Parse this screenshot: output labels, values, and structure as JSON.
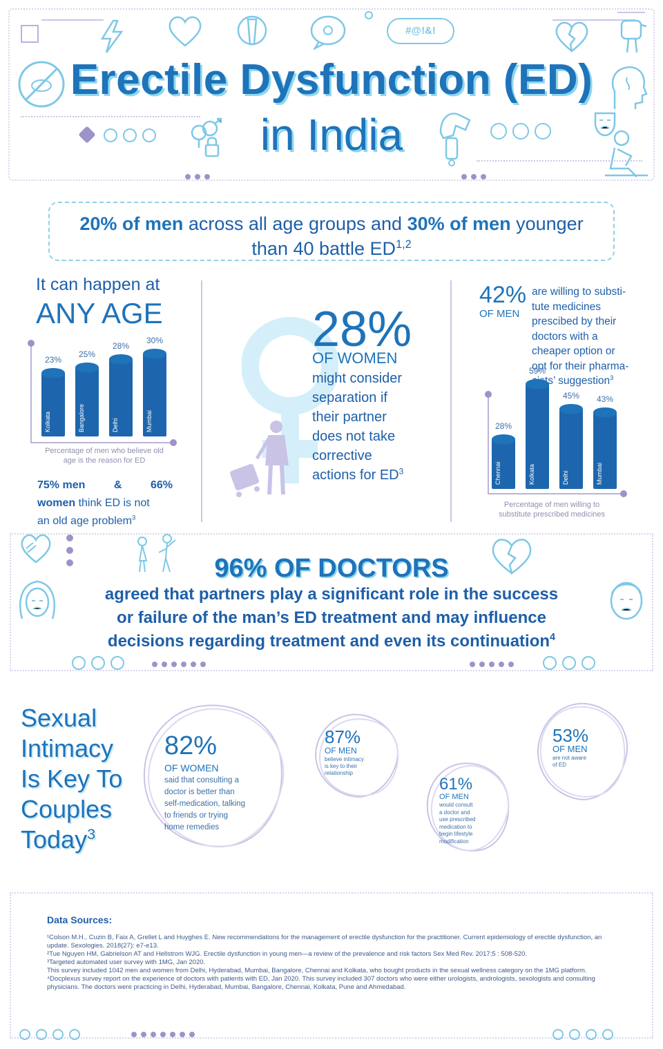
{
  "header": {
    "title": "Erectile Dysfunction (ED)",
    "subtitle": "in India",
    "speech_text": "#@!&!"
  },
  "banner": {
    "part1_bold": "20% of men",
    "part2": " across all age groups and ",
    "part3_bold": "30% of men",
    "part4": " younger",
    "line2": "than 40 battle ED",
    "line2_sup": "1,2"
  },
  "any_age": {
    "intro": "It can happen at",
    "headline": "ANY AGE",
    "caption": "Percentage of men who believe old age is the reason for ED",
    "stat_bold1": "75% men",
    "stat_amp": "&",
    "stat_bold2": "66%",
    "stat_bold3": "women",
    "stat_rest1": "think ED is not",
    "stat_rest2": "an old age problem",
    "stat_sup": "3"
  },
  "women_stat": {
    "percent": "28%",
    "label": "OF WOMEN",
    "line1": "might consider",
    "line2": "separation if",
    "line3": "their partner",
    "line4": "does not take",
    "line5": "corrective",
    "line6": "actions for ED",
    "sup": "3"
  },
  "substitute": {
    "percent": "42%",
    "label": "OF MEN",
    "line1": "are willing to substi-",
    "line2": "tute medicines",
    "line3": "prescibed by their",
    "line4": "doctors with a",
    "line5": "cheaper option or",
    "line6": "opt for their pharma-",
    "line7": "cists’ suggestion",
    "sup": "3",
    "caption": "Percentage of men willing to substitute prescribed medicines"
  },
  "chart_data": [
    {
      "type": "bar",
      "categories": [
        "Kolkata",
        "Bangalore",
        "Delhi",
        "Mumbai"
      ],
      "values": [
        23,
        25,
        28,
        30
      ],
      "value_labels": [
        "23%",
        "25%",
        "28%",
        "30%"
      ],
      "title": "",
      "xlabel": "Percentage of men who believe old age is the reason for ED",
      "ylabel": "",
      "ylim": [
        0,
        35
      ],
      "grid": false,
      "bar_color": "#1d66ad"
    },
    {
      "type": "bar",
      "categories": [
        "Chennai",
        "Kolkata",
        "Delhi",
        "Mumbai"
      ],
      "values": [
        28,
        59,
        45,
        43
      ],
      "value_labels": [
        "28%",
        "59%",
        "45%",
        "43%"
      ],
      "title": "",
      "xlabel": "Percentage of men willing to substitute prescribed medicines",
      "ylabel": "",
      "ylim": [
        0,
        70
      ],
      "grid": false,
      "bar_color": "#1d66ad"
    }
  ],
  "doctors": {
    "headline": "96% OF DOCTORS",
    "line1": "agreed that partners play a significant role in the success",
    "line2": "or failure of the man’s ED treatment and may influence",
    "line3": "decisions regarding treatment and even its continuation",
    "sup": "4"
  },
  "intimacy": {
    "line1": "Sexual",
    "line2": "Intimacy",
    "line3": "Is Key To",
    "line4": "Couples",
    "line5": "Today",
    "sup": "3",
    "bubbles": [
      {
        "percent": "82%",
        "label": "OF WOMEN",
        "text": [
          "said that consulting a",
          "doctor is better than",
          "self-medication, talking",
          "to friends or trying",
          "home remedies"
        ]
      },
      {
        "percent": "87%",
        "label": "OF MEN",
        "text": [
          "believe intimacy",
          "is key to their",
          "relationship"
        ]
      },
      {
        "percent": "61%",
        "label": "OF MEN",
        "text": [
          "would consult",
          "a doctor and",
          "use prescribed",
          "medication to",
          "begin lifestyle",
          "modification"
        ]
      },
      {
        "percent": "53%",
        "label": "OF MEN",
        "text": [
          "are not aware",
          "of ED"
        ]
      }
    ]
  },
  "sources": {
    "heading": "Data Sources:",
    "s1": "¹Colson M.H., Cuzin B, Faix A, Grellet L and Huyghes E. New recommendations for the management of erectile dysfunction for the practitioner. Current epidemiology of erectile dysfunction, an update. Sexologies. 2018(27): e7-e13.",
    "s2": "²Tue Nguyen HM, Gabrielson AT and Hellstrom WJG. Erectile dysfunction in young men—a review of the prevalence and risk factors Sex Med Rev. 2017;5 : 508-520.",
    "s3": "³Targeted automated user survey with 1MG, Jan 2020.",
    "s3b": "This survey included 1042 men and women from Delhi, Hyderabad, Mumbai, Bangalore, Chennai and Kolkata, who bought products in the sexual wellness category on the 1MG platform.",
    "s4": "⁴Docplexus survey report on the experience of doctors with patients with ED, Jan 2020. This survey included 307 doctors who were either urologists, andrologists, sexologists and consulting physicians. The doctors were practicing in Delhi, Hyderabad, Mumbai, Bangalore, Chennai, Kolkata, Pune and Ahmedabad."
  },
  "colors": {
    "primary": "#1e73b9",
    "dark_blue": "#1d66ad",
    "light_blue": "#8dd6ef",
    "lavender": "#c9c6e6"
  }
}
